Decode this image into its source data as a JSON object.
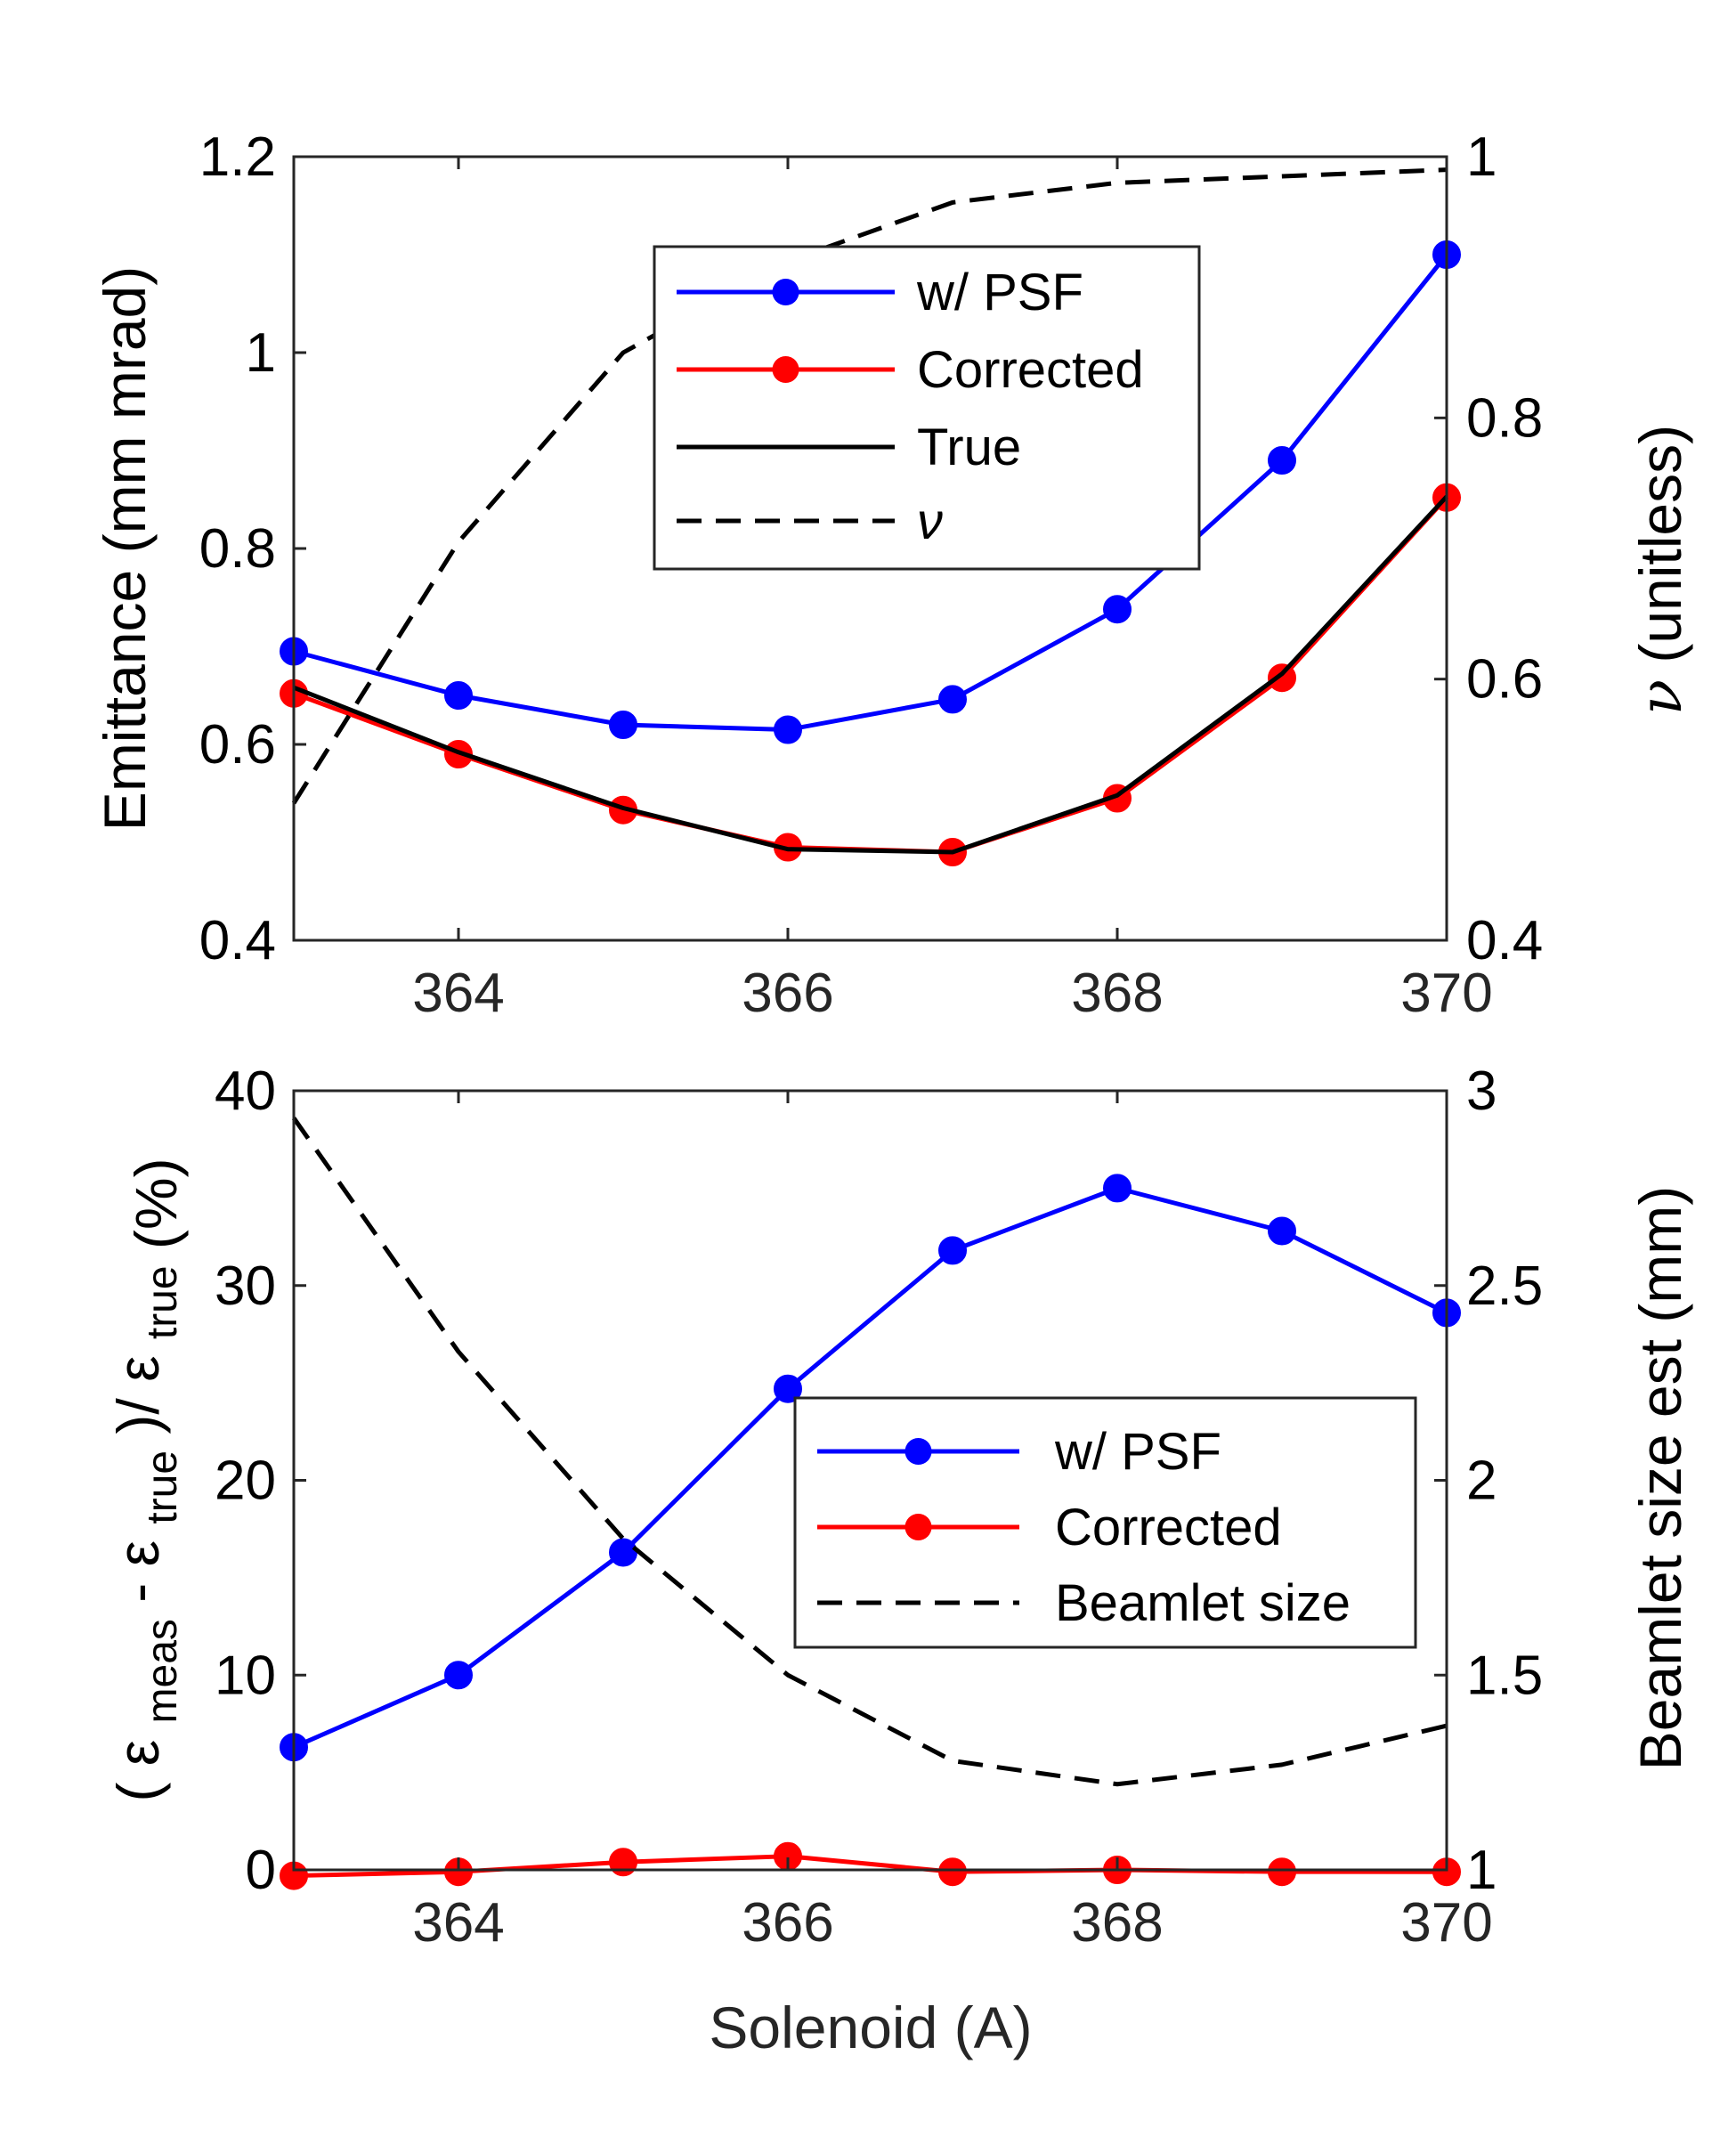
{
  "xlabel": "Solenoid (A)",
  "chart_data": [
    {
      "type": "line",
      "x": [
        363,
        364,
        365,
        366,
        367,
        368,
        369,
        370
      ],
      "xlim": [
        363,
        370
      ],
      "xticks": [
        364,
        366,
        368,
        370
      ],
      "xtick_labels": [
        "364",
        "366",
        "368",
        "370"
      ],
      "ylabel": "Emittance (mm mrad)",
      "ylim": [
        0.4,
        1.2
      ],
      "yticks": [
        0.4,
        0.6,
        0.8,
        1.0,
        1.2
      ],
      "ytick_labels": [
        "0.4",
        "0.6",
        "0.8",
        "1",
        "1.2"
      ],
      "y2label_symbol": "ν",
      "y2label": "(unitless)",
      "y2lim": [
        0.4,
        1.0
      ],
      "y2ticks": [
        0.4,
        0.6,
        0.8,
        1.0
      ],
      "y2tick_labels": [
        "0.4",
        "0.6",
        "0.8",
        "1"
      ],
      "series": [
        {
          "name": "w/ PSF",
          "axis": "left",
          "color": "#0000ff",
          "marker": "circle",
          "dash": "solid",
          "values": [
            0.695,
            0.65,
            0.62,
            0.615,
            0.646,
            0.738,
            0.89,
            1.1
          ]
        },
        {
          "name": "Corrected",
          "axis": "left",
          "color": "#ff0000",
          "marker": "circle",
          "dash": "solid",
          "values": [
            0.652,
            0.59,
            0.533,
            0.495,
            0.49,
            0.545,
            0.668,
            0.852
          ]
        },
        {
          "name": "True",
          "axis": "left",
          "color": "#000000",
          "marker": "none",
          "dash": "solid",
          "values": [
            0.658,
            0.592,
            0.535,
            0.493,
            0.49,
            0.548,
            0.672,
            0.853
          ]
        },
        {
          "name": "ν",
          "axis": "right",
          "color": "#000000",
          "marker": "none",
          "dash": "dashed",
          "values": [
            0.505,
            0.705,
            0.85,
            0.92,
            0.965,
            0.98,
            0.985,
            0.99
          ]
        }
      ],
      "legend": {
        "position": "upper-center",
        "entries": [
          "w/ PSF",
          "Corrected",
          "True",
          "ν"
        ]
      }
    },
    {
      "type": "line",
      "x": [
        363,
        364,
        365,
        366,
        367,
        368,
        369,
        370
      ],
      "xlim": [
        363,
        370
      ],
      "xticks": [
        364,
        366,
        368,
        370
      ],
      "xtick_labels": [
        "364",
        "366",
        "368",
        "370"
      ],
      "ylabel_parts": {
        "open": "(",
        "eps": "ε",
        "meas": "meas",
        "minus": " - ",
        "true": "true",
        "close": ")/",
        "percent": "(%)"
      },
      "ylim": [
        0,
        40
      ],
      "yticks": [
        0,
        10,
        20,
        30,
        40
      ],
      "ytick_labels": [
        "0",
        "10",
        "20",
        "30",
        "40"
      ],
      "y2label": "Beamlet size est (mm)",
      "y2lim": [
        1,
        3
      ],
      "y2ticks": [
        1,
        1.5,
        2,
        2.5,
        3
      ],
      "y2tick_labels": [
        "1",
        "1.5",
        "2",
        "2.5",
        "3"
      ],
      "series": [
        {
          "name": "w/ PSF",
          "axis": "left",
          "color": "#0000ff",
          "marker": "circle",
          "dash": "solid",
          "values": [
            6.3,
            10.0,
            16.3,
            24.7,
            31.8,
            35.0,
            32.8,
            28.6
          ]
        },
        {
          "name": "Corrected",
          "axis": "left",
          "color": "#ff0000",
          "marker": "circle",
          "dash": "solid",
          "values": [
            -0.3,
            -0.1,
            0.4,
            0.7,
            -0.1,
            0.0,
            -0.1,
            -0.1
          ]
        },
        {
          "name": "Beamlet size",
          "axis": "right",
          "color": "#000000",
          "marker": "none",
          "dash": "dashed",
          "values": [
            2.93,
            2.33,
            1.85,
            1.5,
            1.28,
            1.22,
            1.27,
            1.37
          ]
        }
      ],
      "legend": {
        "position": "center-right",
        "entries": [
          "w/ PSF",
          "Corrected",
          "Beamlet size"
        ]
      }
    }
  ]
}
